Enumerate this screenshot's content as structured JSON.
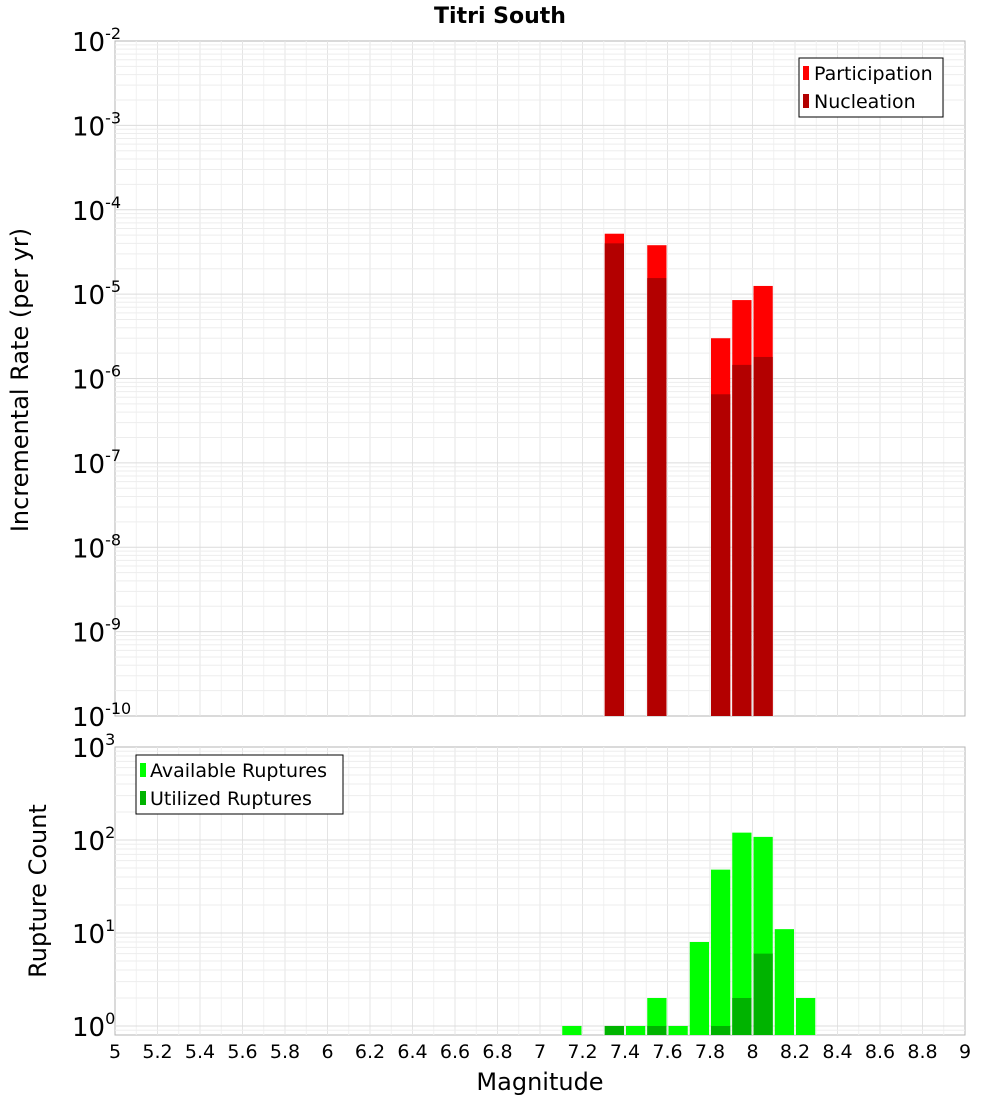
{
  "chart_data": [
    {
      "type": "bar",
      "title": "Titri South",
      "xlabel": "",
      "ylabel": "Incremental Rate (per yr)",
      "yscale": "log",
      "ylim": [
        1e-10,
        0.01
      ],
      "xlim": [
        5,
        9
      ],
      "legend_position": "top-right",
      "ytick_labels": [
        {
          "base": "10",
          "exp": "-10"
        },
        {
          "base": "10",
          "exp": "-9"
        },
        {
          "base": "10",
          "exp": "-8"
        },
        {
          "base": "10",
          "exp": "-7"
        },
        {
          "base": "10",
          "exp": "-6"
        },
        {
          "base": "10",
          "exp": "-5"
        },
        {
          "base": "10",
          "exp": "-4"
        },
        {
          "base": "10",
          "exp": "-3"
        },
        {
          "base": "10",
          "exp": "-2"
        }
      ],
      "series": [
        {
          "name": "Participation",
          "color": "#ff0000",
          "x": [
            7.35,
            7.55,
            7.85,
            7.95,
            8.05
          ],
          "values": [
            5.2e-05,
            3.8e-05,
            3e-06,
            8.5e-06,
            1.25e-05
          ]
        },
        {
          "name": "Nucleation",
          "color": "#b30000",
          "x": [
            7.35,
            7.55,
            7.85,
            7.95,
            8.05
          ],
          "values": [
            4e-05,
            1.55e-05,
            6.5e-07,
            1.45e-06,
            1.8e-06
          ]
        }
      ]
    },
    {
      "type": "bar",
      "title": "",
      "xlabel": "Magnitude",
      "ylabel": "Rupture Count",
      "yscale": "log",
      "ylim": [
        0.8,
        1000
      ],
      "xlim": [
        5,
        9
      ],
      "legend_position": "top-left",
      "xtick_labels": [
        "5",
        "5.2",
        "5.4",
        "5.6",
        "5.8",
        "6",
        "6.2",
        "6.4",
        "6.6",
        "6.8",
        "7",
        "7.2",
        "7.4",
        "7.6",
        "7.8",
        "8",
        "8.2",
        "8.4",
        "8.6",
        "8.8",
        "9"
      ],
      "ytick_labels": [
        {
          "base": "10",
          "exp": "0"
        },
        {
          "base": "10",
          "exp": "1"
        },
        {
          "base": "10",
          "exp": "2"
        },
        {
          "base": "10",
          "exp": "3"
        }
      ],
      "series": [
        {
          "name": "Available Ruptures",
          "color": "#00ff00",
          "x": [
            7.15,
            7.35,
            7.45,
            7.55,
            7.65,
            7.75,
            7.85,
            7.95,
            8.05,
            8.15,
            8.25
          ],
          "values": [
            1,
            1,
            1,
            2,
            1,
            8,
            48,
            120,
            108,
            11,
            2
          ]
        },
        {
          "name": "Utilized Ruptures",
          "color": "#00b300",
          "x": [
            7.35,
            7.55,
            7.85,
            7.95,
            8.05
          ],
          "values": [
            1,
            1,
            1,
            2,
            6
          ]
        }
      ]
    }
  ]
}
